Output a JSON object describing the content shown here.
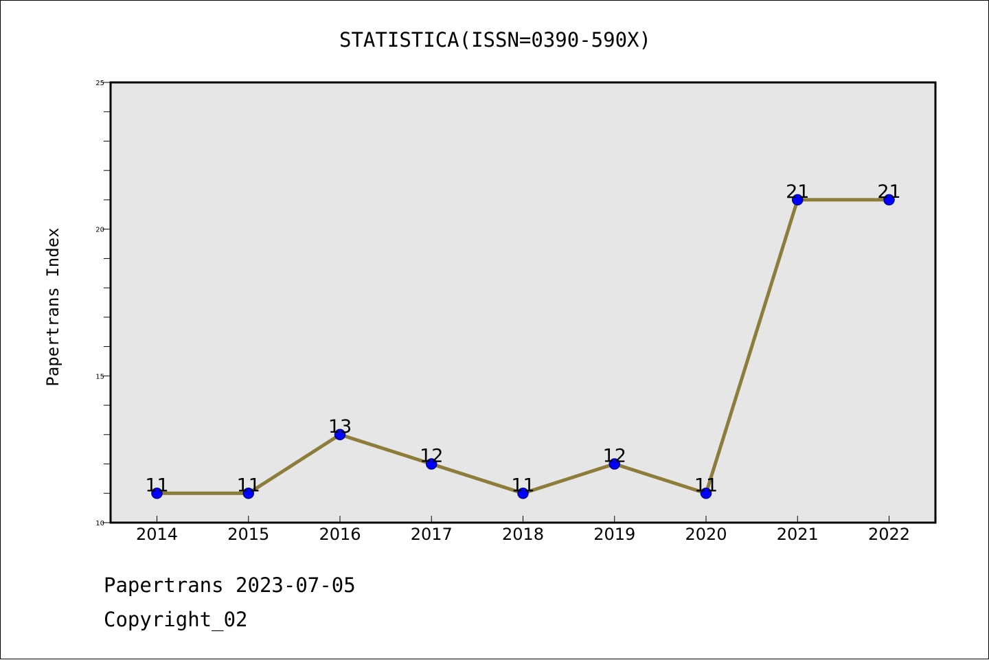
{
  "chart_data": {
    "type": "line",
    "title": "STATISTICA(ISSN=0390-590X)",
    "xlabel": "",
    "ylabel": "Papertrans Index",
    "categories": [
      "2014",
      "2015",
      "2016",
      "2017",
      "2018",
      "2019",
      "2020",
      "2021",
      "2022"
    ],
    "series": [
      {
        "values": [
          11,
          11,
          13,
          12,
          11,
          12,
          11,
          21,
          21
        ]
      }
    ],
    "ylim": [
      10,
      25
    ],
    "yticks": [
      10,
      15,
      20,
      25
    ],
    "yticklabels": [
      "10",
      "15",
      "20",
      "25"
    ],
    "data_labels": [
      "11",
      "11",
      "13",
      "12",
      "11",
      "12",
      "11",
      "21",
      "21"
    ],
    "grid": false,
    "legend": "none",
    "colors": {
      "plot_background": "#e6e6e6",
      "line": "#8c7d3a",
      "marker_fill": "#0000ff",
      "marker_edge": "#000080"
    }
  },
  "footer": {
    "line1": "Papertrans 2023-07-05",
    "line2": "Copyright_02"
  }
}
